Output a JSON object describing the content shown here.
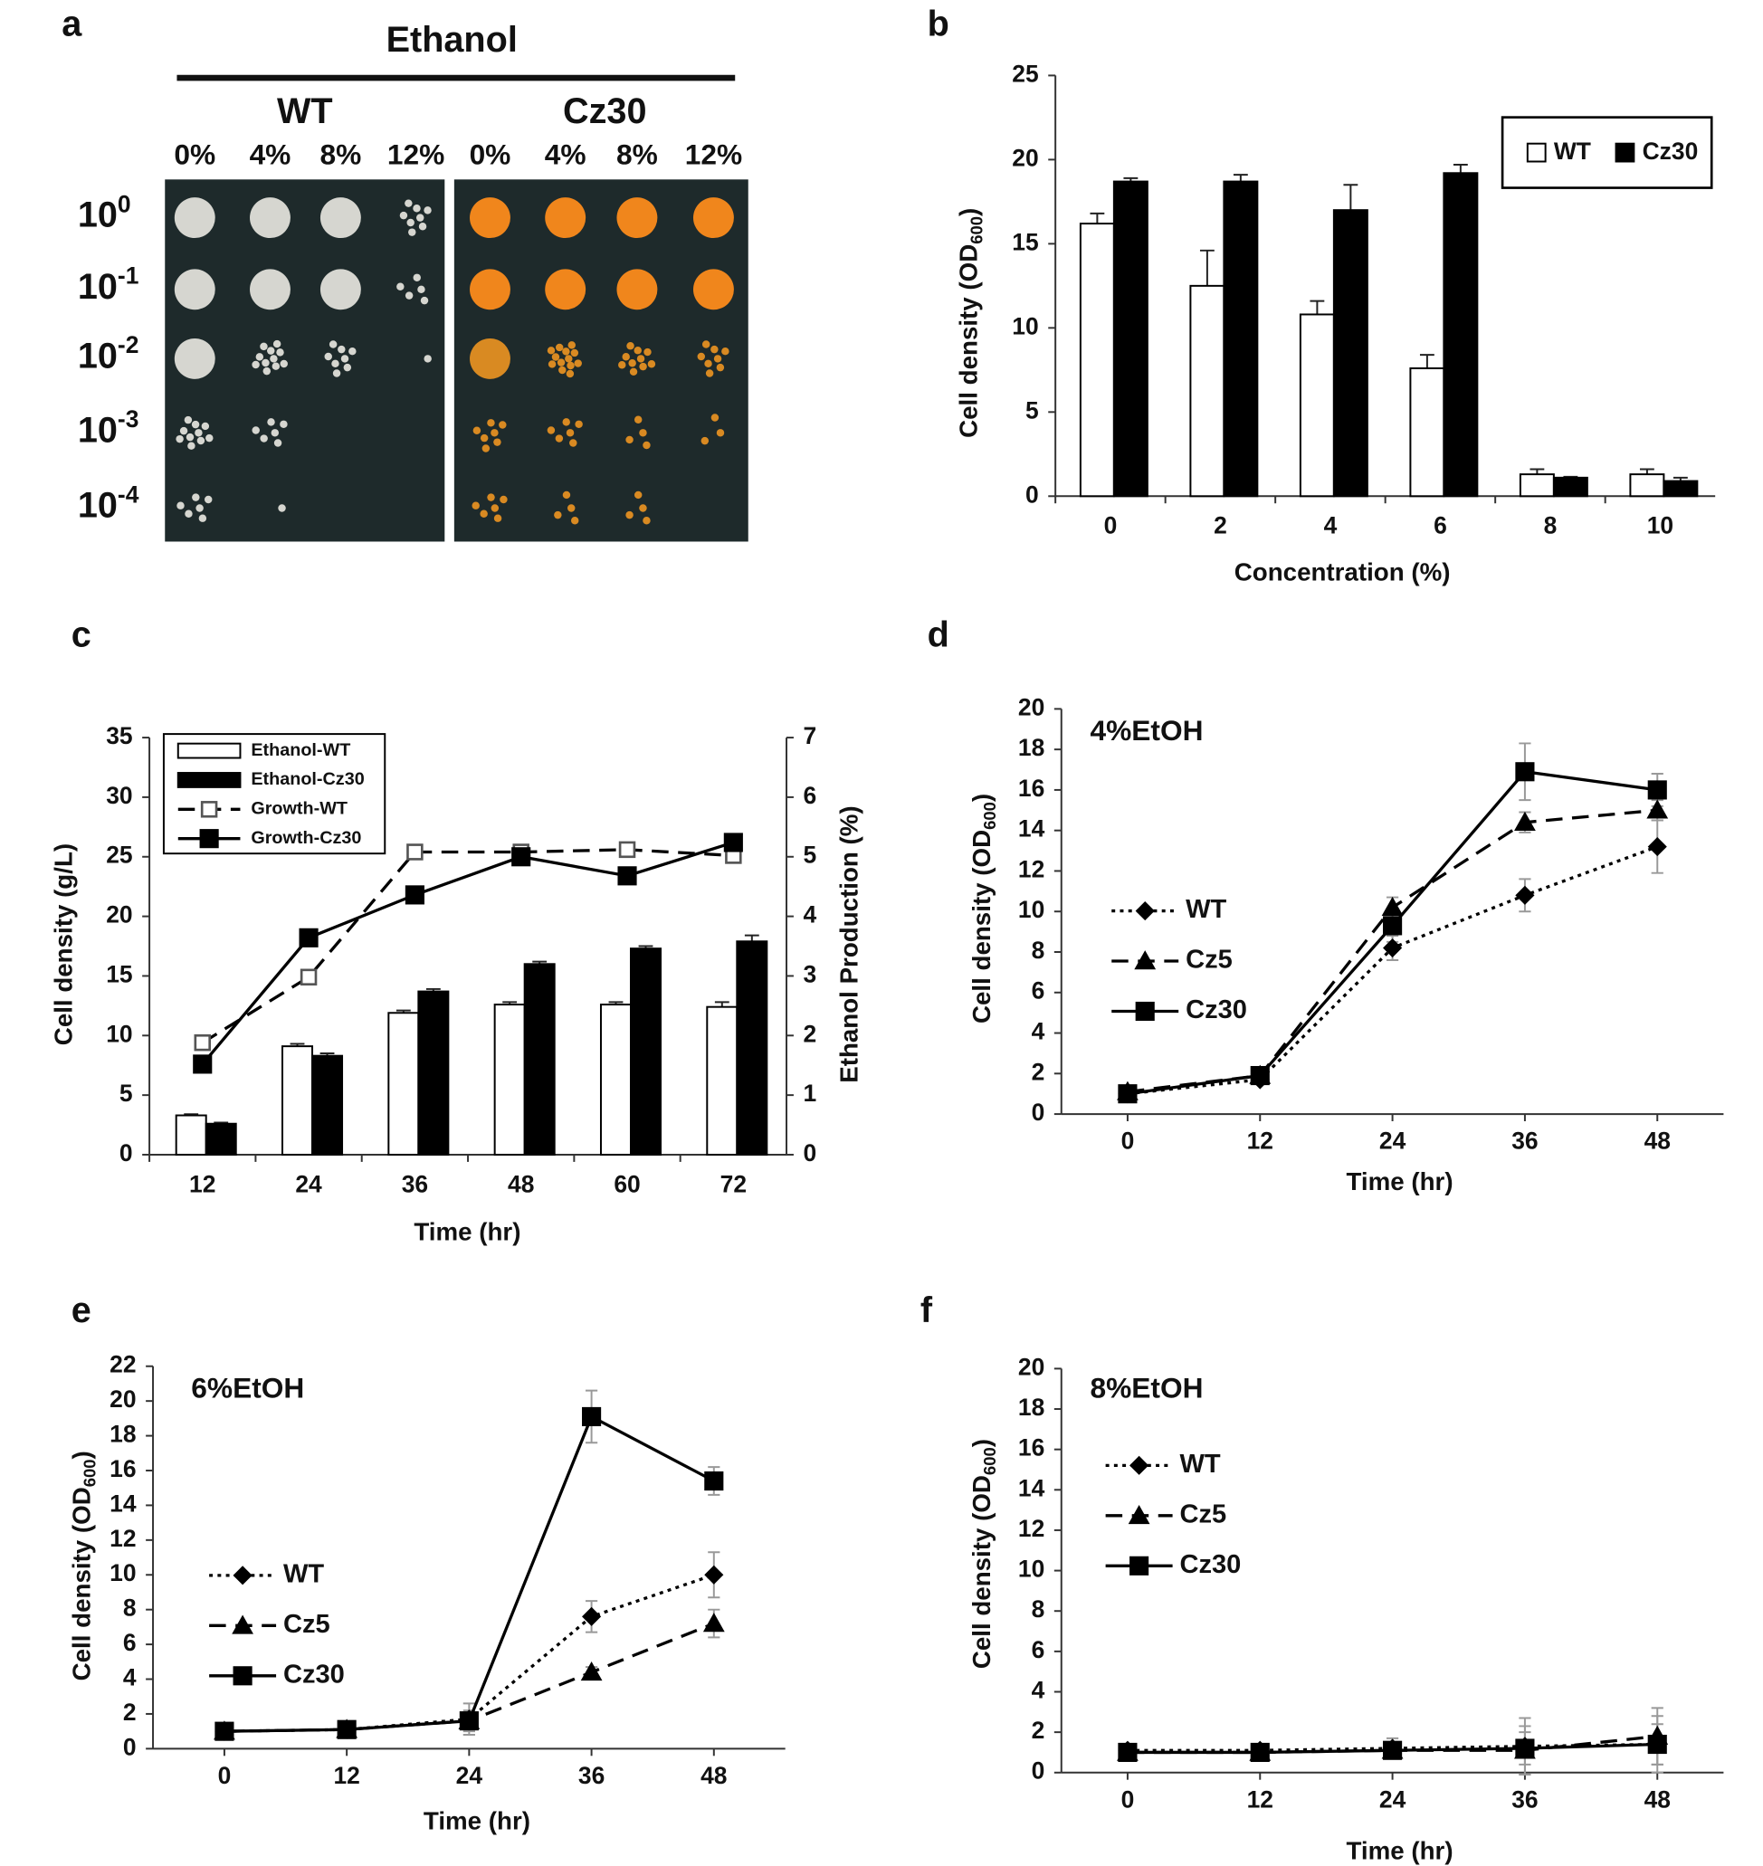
{
  "chart_data": [
    {
      "type": "spot-assay",
      "panel": "a",
      "title": "Ethanol",
      "groups": [
        "WT",
        "Cz30"
      ],
      "concentrations": [
        "0%",
        "4%",
        "8%",
        "12%"
      ],
      "dilution_base": "10",
      "dilution_exponents": [
        "0",
        "-1",
        "-2",
        "-3",
        "-4"
      ]
    },
    {
      "type": "bar",
      "panel": "b",
      "xlabel": "Concentration (%)",
      "ylabel": "Cell density (OD",
      "ylabel_sub": "600",
      "ylabel_end": ")",
      "categories": [
        "0",
        "2",
        "4",
        "6",
        "8",
        "10"
      ],
      "series": [
        {
          "name": "WT",
          "color": "#ffffff",
          "values": [
            16.2,
            12.5,
            10.8,
            7.6,
            1.3,
            1.3
          ],
          "errors": [
            0.6,
            2.1,
            0.8,
            0.8,
            0.3,
            0.3
          ]
        },
        {
          "name": "Cz30",
          "color": "#000000",
          "values": [
            18.7,
            18.7,
            17.0,
            19.2,
            1.1,
            0.9
          ],
          "errors": [
            0.2,
            0.4,
            1.5,
            0.5,
            0.05,
            0.2
          ]
        }
      ],
      "ylim": [
        0,
        25
      ],
      "yticks": [
        0,
        5,
        10,
        15,
        20,
        25
      ],
      "legend": "top-right"
    },
    {
      "type": "combo",
      "panel": "c",
      "xlabel": "Time (hr)",
      "ylabel": "Cell density (g/L)",
      "y2label": "Ethanol Production (%)",
      "categories": [
        "12",
        "24",
        "36",
        "48",
        "60",
        "72"
      ],
      "series": [
        {
          "name": "Ethanol-WT",
          "kind": "bar",
          "axis": "y2",
          "color": "#ffffff",
          "values": [
            0.66,
            1.82,
            2.38,
            2.52,
            2.52,
            2.48
          ],
          "errors": [
            0.02,
            0.04,
            0.04,
            0.04,
            0.04,
            0.08
          ]
        },
        {
          "name": "Ethanol-Cz30",
          "kind": "bar",
          "axis": "y2",
          "color": "#000000",
          "values": [
            0.52,
            1.66,
            2.74,
            3.2,
            3.46,
            3.58
          ],
          "errors": [
            0.02,
            0.04,
            0.04,
            0.04,
            0.04,
            0.1
          ]
        },
        {
          "name": "Growth-WT",
          "kind": "line",
          "color": "#000000",
          "dash": "dashed",
          "marker": "open-square",
          "values": [
            9.4,
            14.9,
            25.4,
            25.4,
            25.6,
            25.1
          ]
        },
        {
          "name": "Growth-Cz30",
          "kind": "line",
          "color": "#000000",
          "dash": "solid",
          "marker": "square",
          "values": [
            7.6,
            18.2,
            21.8,
            25.0,
            23.4,
            26.2
          ]
        }
      ],
      "ylim": [
        0,
        35
      ],
      "yticks": [
        0,
        5,
        10,
        15,
        20,
        25,
        30,
        35
      ],
      "y2lim": [
        0,
        7
      ],
      "y2ticks": [
        0,
        1,
        2,
        3,
        4,
        5,
        6,
        7
      ],
      "legend": "top-left"
    },
    {
      "type": "line",
      "panel": "d",
      "annotation": "4%EtOH",
      "xlabel": "Time (hr)",
      "ylabel": "Cell density (OD",
      "ylabel_sub": "600",
      "ylabel_end": ")",
      "x": [
        0,
        12,
        24,
        36,
        48
      ],
      "series": [
        {
          "name": "WT",
          "color": "#000000",
          "dash": "dotted",
          "marker": "diamond",
          "values": [
            1.0,
            1.7,
            8.2,
            10.8,
            13.2
          ],
          "errors": [
            0.3,
            0.2,
            0.6,
            0.8,
            1.3
          ]
        },
        {
          "name": "Cz5",
          "color": "#000000",
          "dash": "dashed",
          "marker": "triangle",
          "values": [
            1.1,
            1.9,
            10.2,
            14.4,
            15.0
          ],
          "errors": [
            0.3,
            0.2,
            0.5,
            0.5,
            0.5
          ]
        },
        {
          "name": "Cz30",
          "color": "#000000",
          "dash": "solid",
          "marker": "square",
          "values": [
            1.0,
            1.9,
            9.3,
            16.9,
            16.0
          ],
          "errors": [
            0.3,
            0.2,
            0.8,
            1.4,
            0.8
          ]
        }
      ],
      "xlim": [
        -6,
        54
      ],
      "xticks": [
        0,
        12,
        24,
        36,
        48
      ],
      "ylim": [
        0,
        20
      ],
      "yticks": [
        0,
        2,
        4,
        6,
        8,
        10,
        12,
        14,
        16,
        18,
        20
      ],
      "legend": "center-left"
    },
    {
      "type": "line",
      "panel": "e",
      "annotation": "6%EtOH",
      "xlabel": "Time (hr)",
      "ylabel": "Cell density (OD",
      "ylabel_sub": "600",
      "ylabel_end": ")",
      "x": [
        0,
        12,
        24,
        36,
        48
      ],
      "series": [
        {
          "name": "WT",
          "color": "#000000",
          "dash": "dotted",
          "marker": "diamond",
          "values": [
            1.0,
            1.1,
            1.7,
            7.6,
            10.0
          ],
          "errors": [
            0.3,
            0.2,
            0.9,
            0.9,
            1.3
          ]
        },
        {
          "name": "Cz5",
          "color": "#000000",
          "dash": "dashed",
          "marker": "triangle",
          "values": [
            1.0,
            1.1,
            1.6,
            4.4,
            7.2
          ],
          "errors": [
            0.3,
            0.2,
            0.3,
            0.3,
            0.8
          ]
        },
        {
          "name": "Cz30",
          "color": "#000000",
          "dash": "solid",
          "marker": "square",
          "values": [
            1.0,
            1.1,
            1.6,
            19.1,
            15.4
          ],
          "errors": [
            0.3,
            0.2,
            0.6,
            1.5,
            0.8
          ]
        }
      ],
      "xlim": [
        -7,
        55
      ],
      "xticks": [
        0,
        12,
        24,
        36,
        48
      ],
      "ylim": [
        0,
        22
      ],
      "yticks": [
        0,
        2,
        4,
        6,
        8,
        10,
        12,
        14,
        16,
        18,
        20,
        22
      ],
      "legend": "center-left"
    },
    {
      "type": "line",
      "panel": "f",
      "annotation": "8%EtOH",
      "xlabel": "Time (hr)",
      "ylabel": "Cell density (OD",
      "ylabel_sub": "600",
      "ylabel_end": ")",
      "x": [
        0,
        12,
        24,
        36,
        48
      ],
      "series": [
        {
          "name": "WT",
          "color": "#000000",
          "dash": "dotted",
          "marker": "diamond",
          "values": [
            1.1,
            1.1,
            1.2,
            1.3,
            1.4
          ],
          "errors": [
            0.2,
            0.2,
            0.5,
            1.4,
            1.4
          ]
        },
        {
          "name": "Cz5",
          "color": "#000000",
          "dash": "dashed",
          "marker": "triangle",
          "values": [
            1.0,
            1.0,
            1.1,
            1.1,
            1.8
          ],
          "errors": [
            0.2,
            0.2,
            0.4,
            1.2,
            1.4
          ]
        },
        {
          "name": "Cz30",
          "color": "#000000",
          "dash": "solid",
          "marker": "square",
          "values": [
            1.0,
            1.0,
            1.1,
            1.2,
            1.4
          ],
          "errors": [
            0.2,
            0.2,
            0.3,
            0.8,
            1.0
          ]
        }
      ],
      "xlim": [
        -6,
        54
      ],
      "xticks": [
        0,
        12,
        24,
        36,
        48
      ],
      "ylim": [
        0,
        20
      ],
      "yticks": [
        0,
        2,
        4,
        6,
        8,
        10,
        12,
        14,
        16,
        18,
        20
      ],
      "legend": "upper-left"
    }
  ]
}
